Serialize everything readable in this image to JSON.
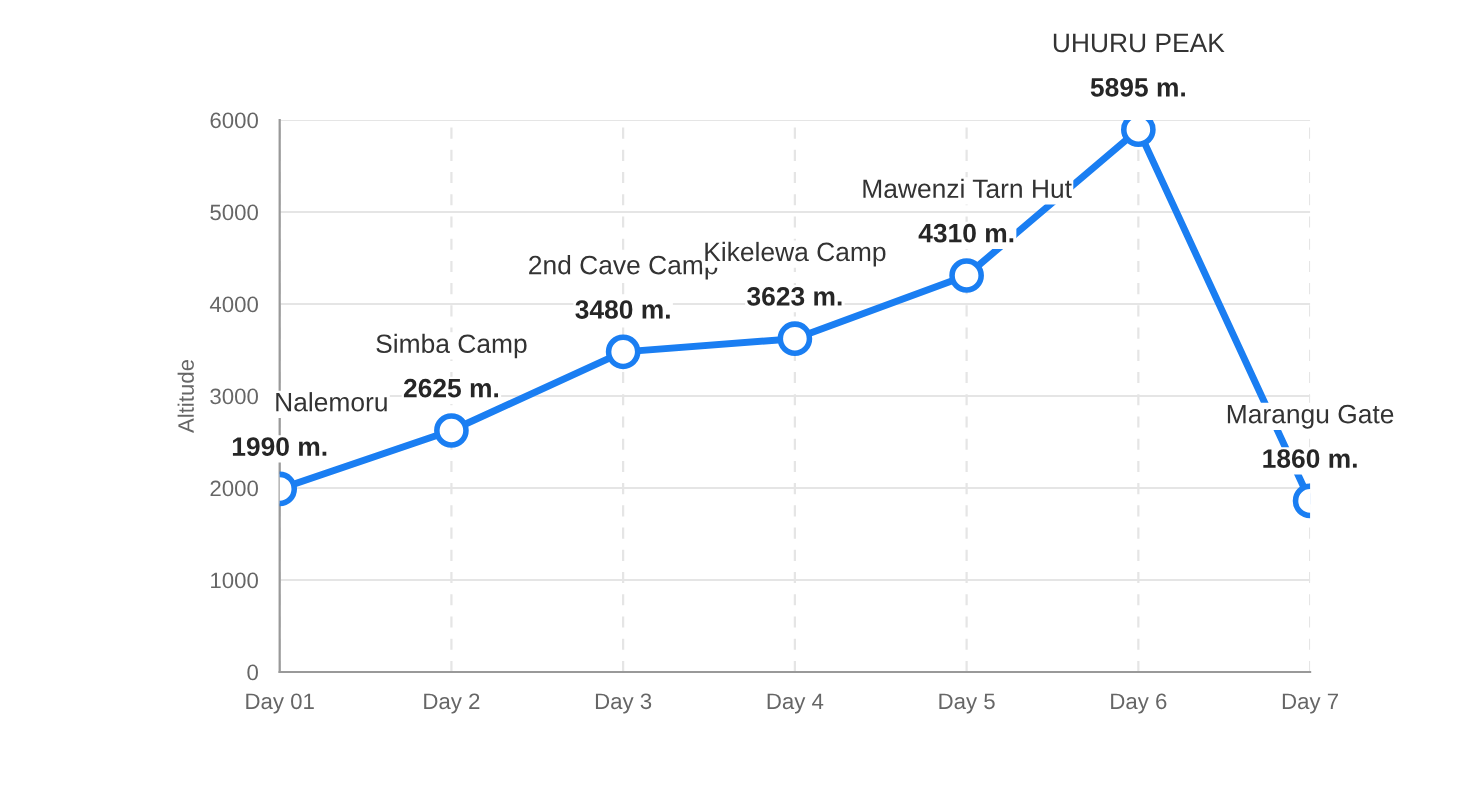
{
  "chart_data": {
    "type": "line",
    "ylabel": "Altitude",
    "categories": [
      "Day 01",
      "Day 2",
      "Day 3",
      "Day 4",
      "Day 5",
      "Day 6",
      "Day 7"
    ],
    "series": [
      {
        "color": "#1a7ef2",
        "values": [
          1990,
          2625,
          3480,
          3623,
          4310,
          5895,
          1860
        ],
        "value_labels": [
          "1990 m.",
          "2625 m.",
          "3480 m.",
          "3623 m.",
          "4310 m.",
          "5895 m.",
          "1860 m."
        ]
      }
    ],
    "annotations": [
      "Nalemoru",
      "Simba Camp",
      "2nd Cave Camp",
      "Kikelewa Camp",
      "Mawenzi Tarn Hut",
      "UHURU PEAK",
      "Marangu Gate"
    ],
    "ylim": [
      0,
      6000
    ],
    "yticks": [
      0,
      1000,
      2000,
      3000,
      4000,
      5000,
      6000
    ],
    "grid": true,
    "marker": "circle",
    "line_style": "solid",
    "legend": false
  }
}
